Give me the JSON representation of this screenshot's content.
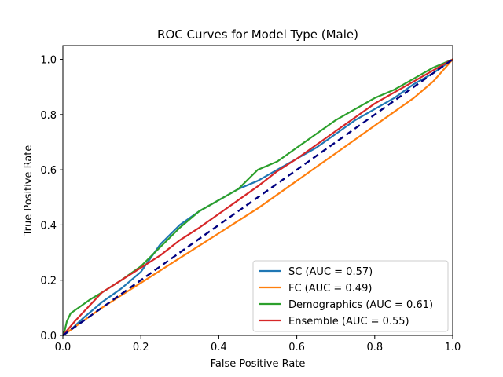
{
  "chart_data": {
    "type": "line",
    "title": "ROC Curves for Model Type (Male)",
    "xlabel": "False Positive Rate",
    "ylabel": "True Positive Rate",
    "xlim": [
      0.0,
      1.0
    ],
    "ylim": [
      0.0,
      1.05
    ],
    "xticks": [
      0.0,
      0.2,
      0.4,
      0.6,
      0.8,
      1.0
    ],
    "yticks": [
      0.0,
      0.2,
      0.4,
      0.6,
      0.8,
      1.0
    ],
    "xtick_labels": [
      "0.0",
      "0.2",
      "0.4",
      "0.6",
      "0.8",
      "1.0"
    ],
    "ytick_labels": [
      "0.0",
      "0.2",
      "0.4",
      "0.6",
      "0.8",
      "1.0"
    ],
    "grid": false,
    "legend_position": "lower-right",
    "series": [
      {
        "name": "SC (AUC = 0.57)",
        "color": "#1f77b4",
        "x": [
          0,
          0.02,
          0.05,
          0.1,
          0.15,
          0.2,
          0.25,
          0.3,
          0.35,
          0.4,
          0.45,
          0.5,
          0.55,
          0.6,
          0.65,
          0.7,
          0.75,
          0.8,
          0.85,
          0.9,
          0.95,
          1.0
        ],
        "y": [
          0,
          0.02,
          0.06,
          0.12,
          0.17,
          0.23,
          0.33,
          0.4,
          0.45,
          0.49,
          0.53,
          0.56,
          0.6,
          0.64,
          0.68,
          0.73,
          0.78,
          0.82,
          0.86,
          0.91,
          0.95,
          1.0
        ]
      },
      {
        "name": "FC (AUC = 0.49)",
        "color": "#ff7f0e",
        "x": [
          0,
          0.05,
          0.1,
          0.15,
          0.2,
          0.25,
          0.3,
          0.35,
          0.4,
          0.45,
          0.5,
          0.55,
          0.6,
          0.65,
          0.7,
          0.75,
          0.8,
          0.85,
          0.9,
          0.95,
          1.0
        ],
        "y": [
          0,
          0.05,
          0.1,
          0.145,
          0.19,
          0.235,
          0.28,
          0.325,
          0.37,
          0.415,
          0.46,
          0.51,
          0.56,
          0.61,
          0.66,
          0.71,
          0.76,
          0.81,
          0.86,
          0.92,
          1.0
        ]
      },
      {
        "name": "Demographics (AUC = 0.61)",
        "color": "#2ca02c",
        "x": [
          0,
          0.005,
          0.01,
          0.02,
          0.04,
          0.07,
          0.1,
          0.15,
          0.2,
          0.25,
          0.3,
          0.35,
          0.4,
          0.45,
          0.5,
          0.55,
          0.6,
          0.65,
          0.7,
          0.75,
          0.8,
          0.85,
          0.9,
          0.95,
          1.0
        ],
        "y": [
          0,
          0.02,
          0.05,
          0.08,
          0.1,
          0.13,
          0.155,
          0.2,
          0.25,
          0.32,
          0.39,
          0.45,
          0.49,
          0.53,
          0.6,
          0.63,
          0.68,
          0.73,
          0.78,
          0.82,
          0.86,
          0.89,
          0.93,
          0.97,
          1.0
        ]
      },
      {
        "name": "Ensemble (AUC = 0.55)",
        "color": "#d62728",
        "x": [
          0,
          0.03,
          0.07,
          0.1,
          0.15,
          0.2,
          0.25,
          0.3,
          0.35,
          0.4,
          0.45,
          0.5,
          0.55,
          0.6,
          0.65,
          0.7,
          0.75,
          0.8,
          0.85,
          0.9,
          0.95,
          1.0
        ],
        "y": [
          0,
          0.05,
          0.11,
          0.155,
          0.2,
          0.245,
          0.29,
          0.345,
          0.39,
          0.44,
          0.49,
          0.54,
          0.595,
          0.64,
          0.69,
          0.74,
          0.79,
          0.84,
          0.88,
          0.92,
          0.96,
          1.0
        ]
      }
    ],
    "reference_line": {
      "color": "#000080",
      "style": "dashed",
      "x": [
        0,
        1
      ],
      "y": [
        0,
        1
      ]
    }
  }
}
